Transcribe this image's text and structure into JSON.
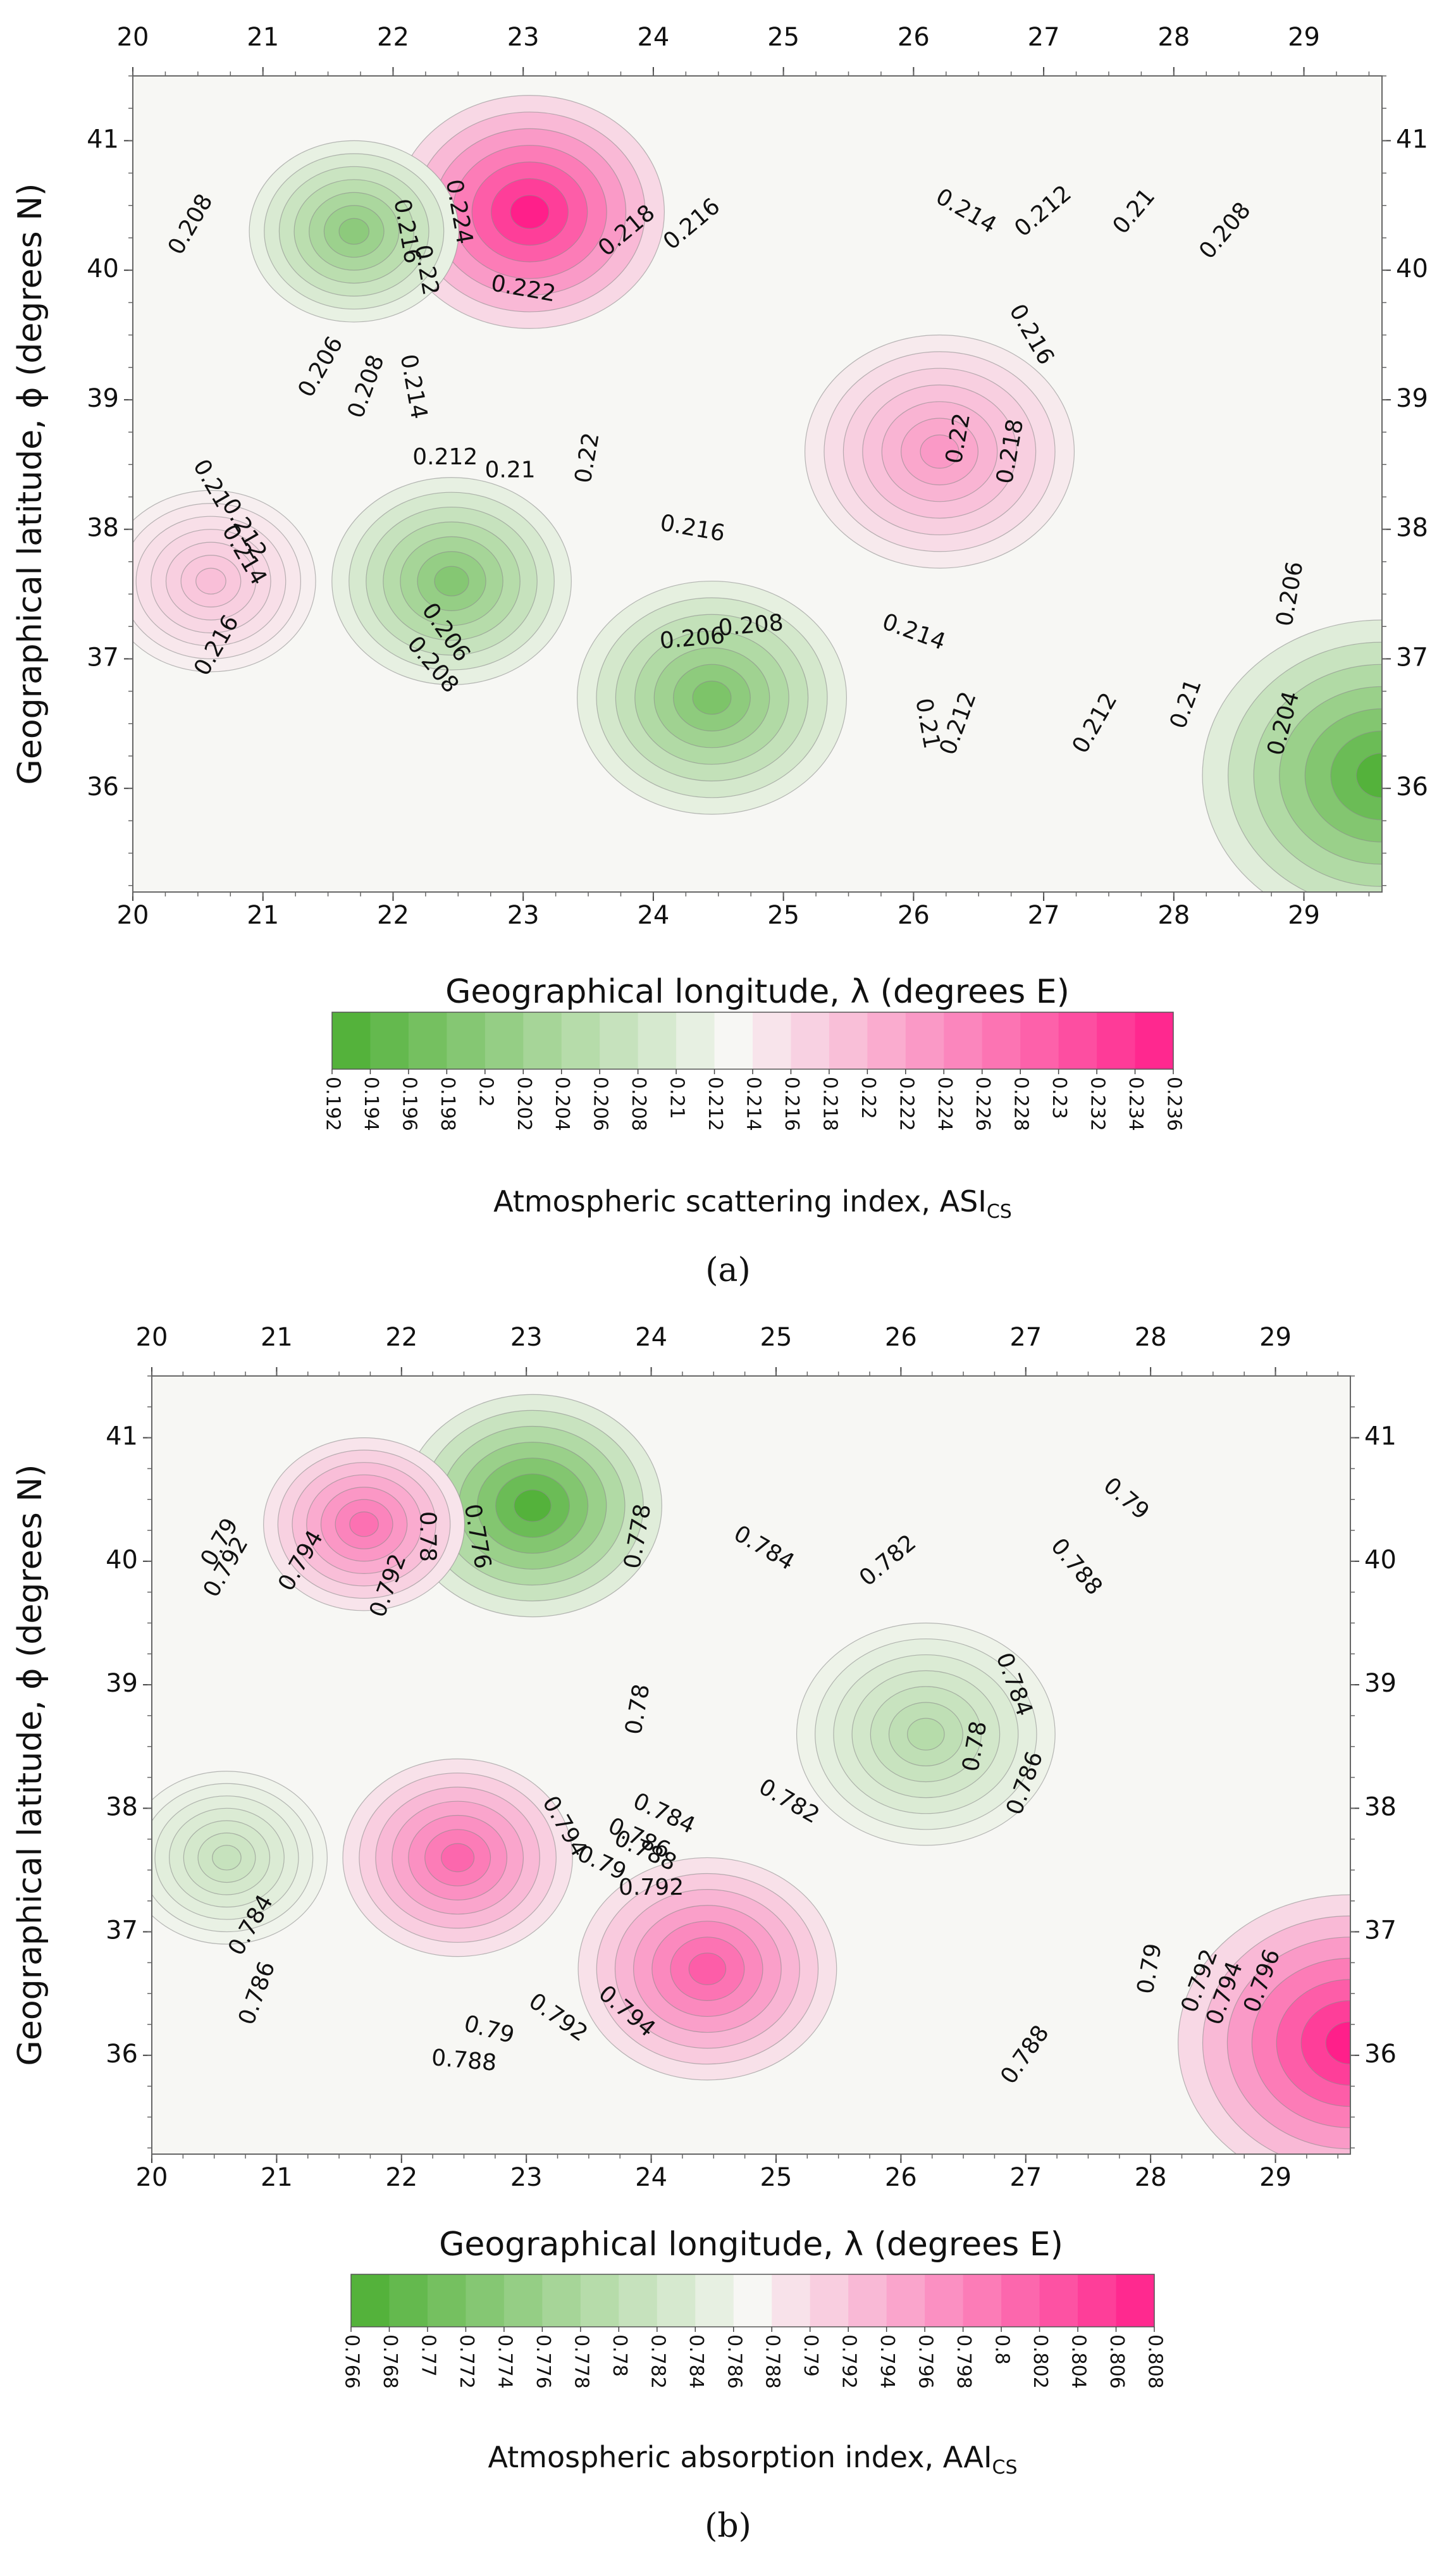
{
  "chart_data": [
    {
      "type": "heatmap",
      "panel_label": "(a)",
      "xlabel": "Geographical longitude, λ (degrees E)",
      "ylabel": "Geographical latitude, ϕ (degrees N)",
      "x_ticks": [
        "20",
        "21",
        "22",
        "23",
        "24",
        "25",
        "26",
        "27",
        "28",
        "29"
      ],
      "y_ticks": [
        "41",
        "40",
        "39",
        "38",
        "37",
        "36"
      ],
      "xlim": [
        20,
        29.6
      ],
      "ylim": [
        35.2,
        41.5
      ],
      "colorbar": {
        "title": "Atmospheric scattering index, ASI",
        "title_sub": "CS",
        "ticks": [
          "0.192",
          "0.194",
          "0.196",
          "0.198",
          "0.2",
          "0.202",
          "0.204",
          "0.206",
          "0.208",
          "0.21",
          "0.212",
          "0.214",
          "0.216",
          "0.218",
          "0.22",
          "0.222",
          "0.224",
          "0.226",
          "0.228",
          "0.23",
          "0.232",
          "0.234",
          "0.236"
        ],
        "low_color": "#4caf32",
        "mid_color": "#f7f7f4",
        "high_color": "#ff1f8a",
        "mid_value": 0.213
      },
      "extrema": [
        {
          "lon": 23.05,
          "lat": 40.45,
          "value": 0.236,
          "radius_deg": 0.9
        },
        {
          "lon": 26.2,
          "lat": 38.6,
          "value": 0.223,
          "radius_deg": 0.9
        },
        {
          "lon": 20.6,
          "lat": 37.6,
          "value": 0.219,
          "radius_deg": 0.7
        },
        {
          "lon": 21.7,
          "lat": 40.3,
          "value": 0.2,
          "radius_deg": 0.7
        },
        {
          "lon": 22.45,
          "lat": 37.6,
          "value": 0.199,
          "radius_deg": 0.8
        },
        {
          "lon": 24.45,
          "lat": 36.7,
          "value": 0.198,
          "radius_deg": 0.9
        },
        {
          "lon": 29.6,
          "lat": 36.1,
          "value": 0.193,
          "radius_deg": 1.2
        }
      ],
      "contour_labels": [
        {
          "text": "0.208",
          "lon": 20.45,
          "lat": 40.35,
          "angle": -60
        },
        {
          "text": "0.224",
          "lon": 22.5,
          "lat": 40.45,
          "angle": 80
        },
        {
          "text": "0.216",
          "lon": 22.1,
          "lat": 40.3,
          "angle": 80
        },
        {
          "text": "0.22",
          "lon": 22.25,
          "lat": 40.0,
          "angle": 80
        },
        {
          "text": "0.216",
          "lon": 24.3,
          "lat": 40.35,
          "angle": -40
        },
        {
          "text": "0.218",
          "lon": 23.8,
          "lat": 40.3,
          "angle": -40
        },
        {
          "text": "0.222",
          "lon": 23.0,
          "lat": 39.85,
          "angle": 10
        },
        {
          "text": "0.214",
          "lon": 26.4,
          "lat": 40.45,
          "angle": 30
        },
        {
          "text": "0.212",
          "lon": 27.0,
          "lat": 40.45,
          "angle": -40
        },
        {
          "text": "0.21",
          "lon": 27.7,
          "lat": 40.45,
          "angle": -50
        },
        {
          "text": "0.208",
          "lon": 28.4,
          "lat": 40.3,
          "angle": -50
        },
        {
          "text": "0.216",
          "lon": 26.9,
          "lat": 39.5,
          "angle": 60
        },
        {
          "text": "0.206",
          "lon": 21.45,
          "lat": 39.25,
          "angle": -60
        },
        {
          "text": "0.208",
          "lon": 21.8,
          "lat": 39.1,
          "angle": -70
        },
        {
          "text": "0.214",
          "lon": 22.15,
          "lat": 39.1,
          "angle": 80
        },
        {
          "text": "0.212",
          "lon": 22.4,
          "lat": 38.55,
          "angle": 0
        },
        {
          "text": "0.21",
          "lon": 22.9,
          "lat": 38.45,
          "angle": 0
        },
        {
          "text": "0.22",
          "lon": 23.5,
          "lat": 38.55,
          "angle": -80
        },
        {
          "text": "0.22",
          "lon": 26.35,
          "lat": 38.7,
          "angle": -80
        },
        {
          "text": "0.218",
          "lon": 26.75,
          "lat": 38.6,
          "angle": -80
        },
        {
          "text": "0.21",
          "lon": 20.6,
          "lat": 38.35,
          "angle": 60
        },
        {
          "text": "0.212",
          "lon": 20.85,
          "lat": 38.0,
          "angle": 60
        },
        {
          "text": "0.214",
          "lon": 20.85,
          "lat": 37.8,
          "angle": 60
        },
        {
          "text": "0.216",
          "lon": 20.65,
          "lat": 37.1,
          "angle": -60
        },
        {
          "text": "0.216",
          "lon": 24.3,
          "lat": 38.0,
          "angle": 10
        },
        {
          "text": "0.206",
          "lon": 22.4,
          "lat": 37.2,
          "angle": 55
        },
        {
          "text": "0.208",
          "lon": 22.3,
          "lat": 36.95,
          "angle": 50
        },
        {
          "text": "0.208",
          "lon": 24.75,
          "lat": 37.25,
          "angle": -5
        },
        {
          "text": "0.206",
          "lon": 24.3,
          "lat": 37.15,
          "angle": -5
        },
        {
          "text": "0.214",
          "lon": 26.0,
          "lat": 37.2,
          "angle": 20
        },
        {
          "text": "0.21",
          "lon": 26.1,
          "lat": 36.5,
          "angle": 80
        },
        {
          "text": "0.212",
          "lon": 26.35,
          "lat": 36.5,
          "angle": -70
        },
        {
          "text": "0.212",
          "lon": 27.4,
          "lat": 36.5,
          "angle": -60
        },
        {
          "text": "0.21",
          "lon": 28.1,
          "lat": 36.65,
          "angle": -70
        },
        {
          "text": "0.206",
          "lon": 28.9,
          "lat": 37.5,
          "angle": -80
        },
        {
          "text": "0.204",
          "lon": 28.85,
          "lat": 36.5,
          "angle": -75
        }
      ]
    },
    {
      "type": "heatmap",
      "panel_label": "(b)",
      "xlabel": "Geographical longitude, λ (degrees E)",
      "ylabel": "Geographical latitude, ϕ (degrees N)",
      "x_ticks": [
        "20",
        "21",
        "22",
        "23",
        "24",
        "25",
        "26",
        "27",
        "28",
        "29"
      ],
      "y_ticks": [
        "41",
        "40",
        "39",
        "38",
        "37",
        "36"
      ],
      "xlim": [
        20,
        29.6
      ],
      "ylim": [
        35.2,
        41.5
      ],
      "colorbar": {
        "title": "Atmospheric absorption index, AAI",
        "title_sub": "CS",
        "ticks": [
          "0.766",
          "0.768",
          "0.77",
          "0.772",
          "0.774",
          "0.776",
          "0.778",
          "0.78",
          "0.782",
          "0.784",
          "0.786",
          "0.788",
          "0.79",
          "0.792",
          "0.794",
          "0.796",
          "0.798",
          "0.8",
          "0.802",
          "0.804",
          "0.806",
          "0.808"
        ],
        "low_color": "#4caf32",
        "mid_color": "#f7f7f4",
        "high_color": "#ff1f8a",
        "mid_value": 0.787
      },
      "extrema": [
        {
          "lon": 23.05,
          "lat": 40.45,
          "value": 0.767,
          "radius_deg": 0.9
        },
        {
          "lon": 26.2,
          "lat": 38.6,
          "value": 0.779,
          "radius_deg": 0.9
        },
        {
          "lon": 20.6,
          "lat": 37.6,
          "value": 0.781,
          "radius_deg": 0.7
        },
        {
          "lon": 21.7,
          "lat": 40.3,
          "value": 0.8,
          "radius_deg": 0.7
        },
        {
          "lon": 22.45,
          "lat": 37.6,
          "value": 0.801,
          "radius_deg": 0.8
        },
        {
          "lon": 24.45,
          "lat": 36.7,
          "value": 0.802,
          "radius_deg": 0.9
        },
        {
          "lon": 29.6,
          "lat": 36.1,
          "value": 0.808,
          "radius_deg": 1.2
        }
      ],
      "contour_labels": [
        {
          "text": "0.79",
          "lon": 20.55,
          "lat": 40.15,
          "angle": -60
        },
        {
          "text": "0.792",
          "lon": 20.6,
          "lat": 39.95,
          "angle": -60
        },
        {
          "text": "0.794",
          "lon": 21.2,
          "lat": 40.0,
          "angle": -60
        },
        {
          "text": "0.792",
          "lon": 21.9,
          "lat": 39.8,
          "angle": -70
        },
        {
          "text": "0.78",
          "lon": 22.2,
          "lat": 40.2,
          "angle": 90
        },
        {
          "text": "0.776",
          "lon": 22.6,
          "lat": 40.2,
          "angle": 80
        },
        {
          "text": "0.778",
          "lon": 23.9,
          "lat": 40.2,
          "angle": -80
        },
        {
          "text": "0.784",
          "lon": 24.9,
          "lat": 40.1,
          "angle": 30
        },
        {
          "text": "0.782",
          "lon": 25.9,
          "lat": 40.0,
          "angle": -40
        },
        {
          "text": "0.79",
          "lon": 27.8,
          "lat": 40.5,
          "angle": 40
        },
        {
          "text": "0.788",
          "lon": 27.4,
          "lat": 39.95,
          "angle": 50
        },
        {
          "text": "0.784",
          "lon": 26.9,
          "lat": 39.0,
          "angle": 70
        },
        {
          "text": "0.78",
          "lon": 23.9,
          "lat": 38.8,
          "angle": -80
        },
        {
          "text": "0.78",
          "lon": 26.6,
          "lat": 38.5,
          "angle": -80
        },
        {
          "text": "0.786",
          "lon": 27.0,
          "lat": 38.2,
          "angle": -70
        },
        {
          "text": "0.782",
          "lon": 25.1,
          "lat": 38.05,
          "angle": 30
        },
        {
          "text": "0.784",
          "lon": 24.1,
          "lat": 37.95,
          "angle": 25
        },
        {
          "text": "0.786",
          "lon": 23.9,
          "lat": 37.75,
          "angle": 25
        },
        {
          "text": "0.788",
          "lon": 23.95,
          "lat": 37.65,
          "angle": 25
        },
        {
          "text": "0.79",
          "lon": 23.6,
          "lat": 37.55,
          "angle": 25
        },
        {
          "text": "0.792",
          "lon": 24.0,
          "lat": 37.35,
          "angle": 0
        },
        {
          "text": "0.794",
          "lon": 23.3,
          "lat": 37.85,
          "angle": 60
        },
        {
          "text": "0.784",
          "lon": 20.8,
          "lat": 37.05,
          "angle": -60
        },
        {
          "text": "0.786",
          "lon": 20.85,
          "lat": 36.5,
          "angle": -70
        },
        {
          "text": "0.79",
          "lon": 22.7,
          "lat": 36.2,
          "angle": 15
        },
        {
          "text": "0.788",
          "lon": 22.5,
          "lat": 35.95,
          "angle": 5
        },
        {
          "text": "0.792",
          "lon": 23.25,
          "lat": 36.3,
          "angle": 35
        },
        {
          "text": "0.794",
          "lon": 23.8,
          "lat": 36.35,
          "angle": 40
        },
        {
          "text": "0.788",
          "lon": 27.0,
          "lat": 36.0,
          "angle": -55
        },
        {
          "text": "0.79",
          "lon": 28.0,
          "lat": 36.7,
          "angle": -80
        },
        {
          "text": "0.792",
          "lon": 28.4,
          "lat": 36.6,
          "angle": -70
        },
        {
          "text": "0.794",
          "lon": 28.6,
          "lat": 36.5,
          "angle": -70
        },
        {
          "text": "0.796",
          "lon": 28.9,
          "lat": 36.6,
          "angle": -70
        }
      ]
    }
  ]
}
